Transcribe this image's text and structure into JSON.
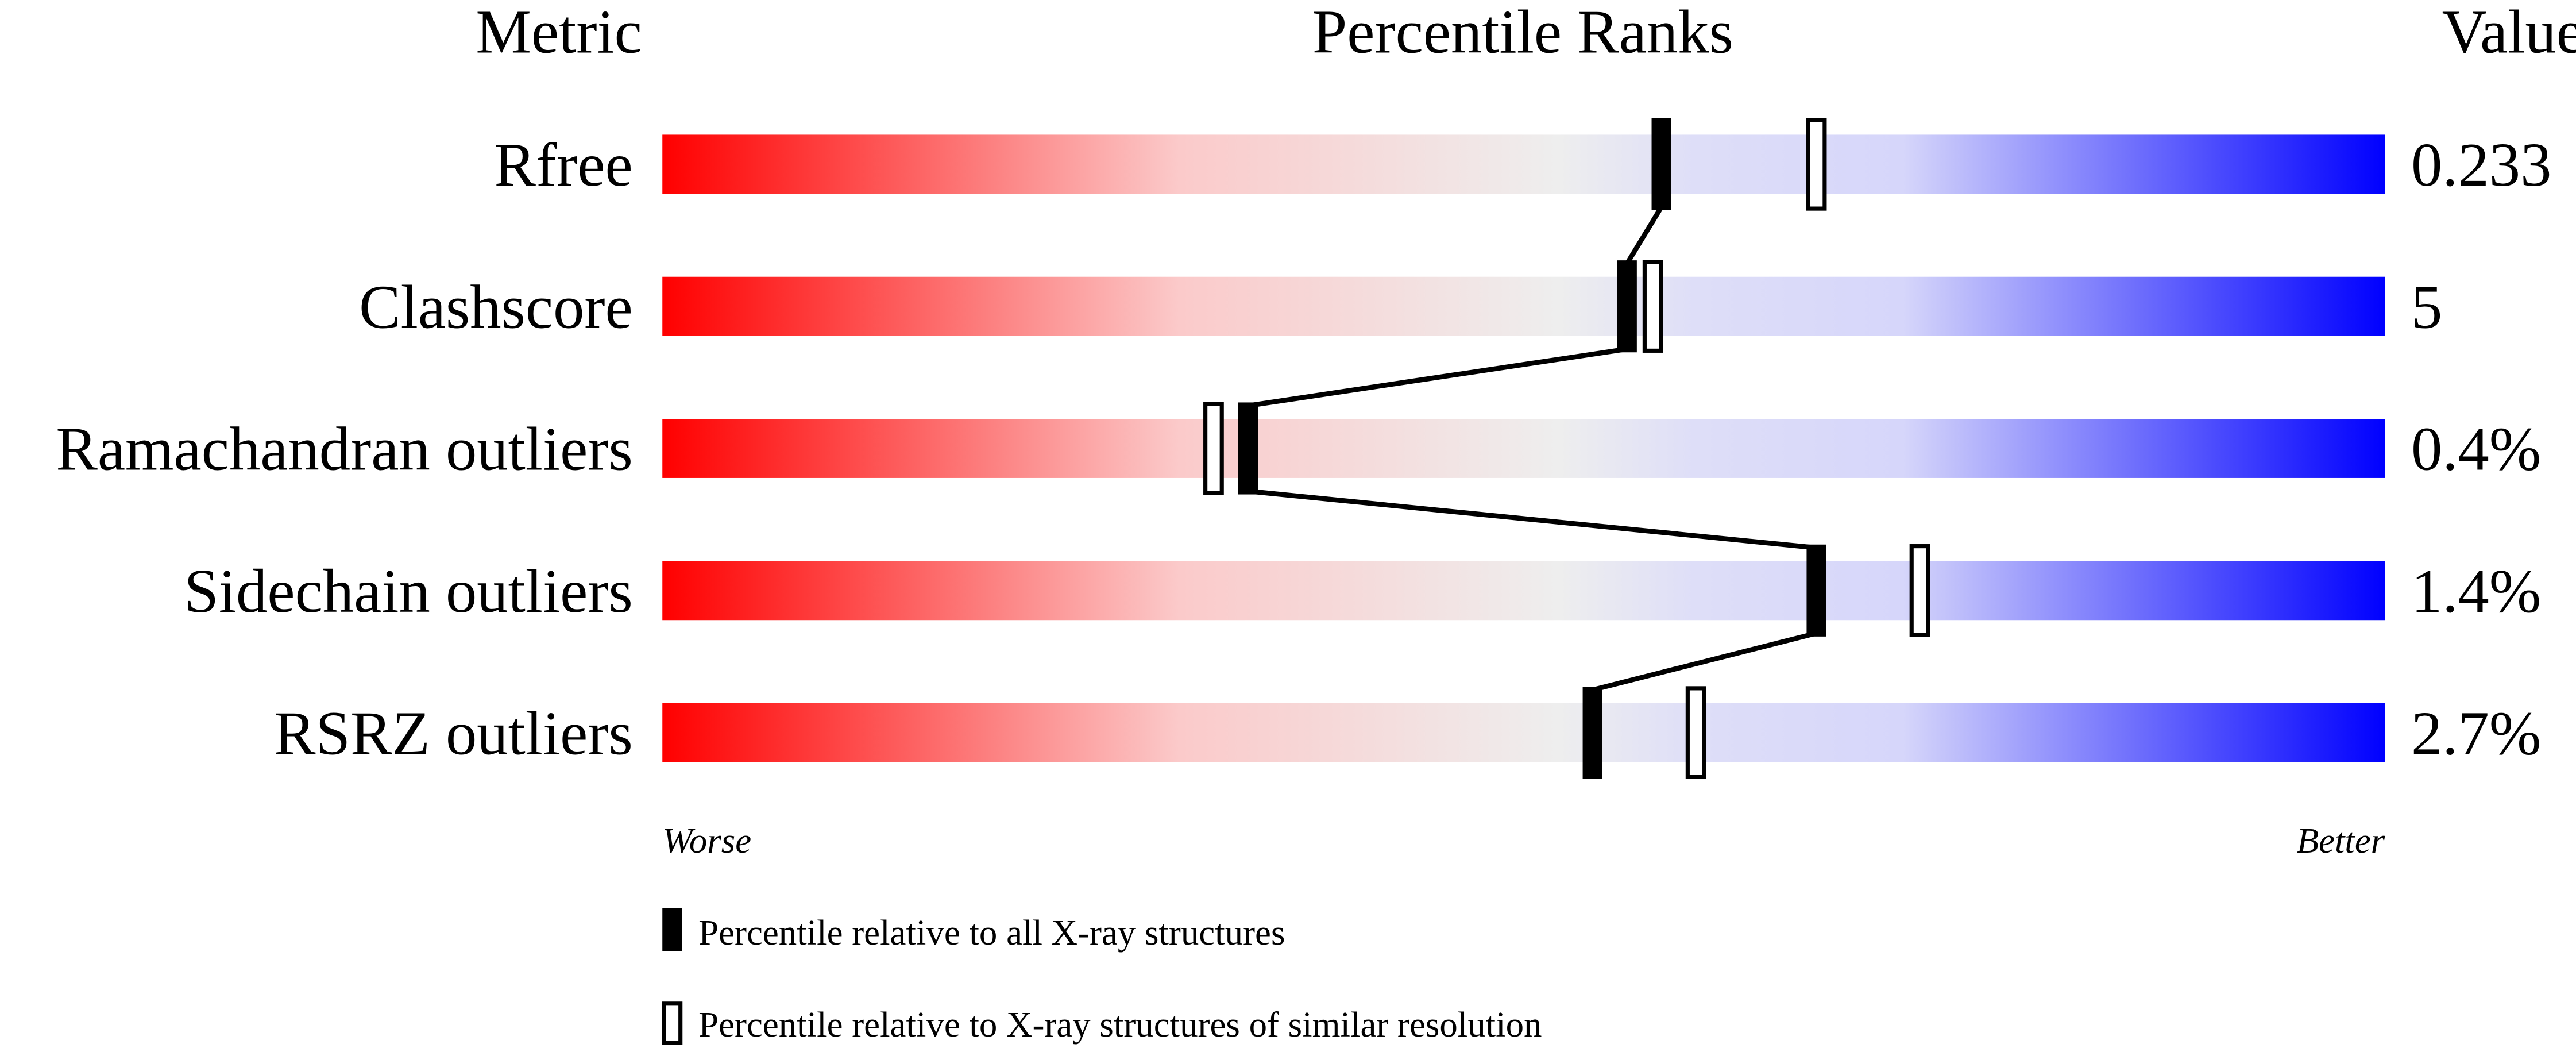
{
  "chart_data": {
    "type": "percentile-slider",
    "headers": {
      "metric": "Metric",
      "ranks": "Percentile Ranks",
      "value": "Value"
    },
    "xlim": [
      0,
      100
    ],
    "axis_labels": {
      "left": "Worse",
      "right": "Better"
    },
    "gradient_colors": {
      "worse": "#ff0000",
      "middle": "#eeeeee",
      "better": "#0000ff"
    },
    "metrics": [
      {
        "name": "Rfree",
        "value": "0.233",
        "percentile_all": 58,
        "percentile_similar": 67
      },
      {
        "name": "Clashscore",
        "value": "5",
        "percentile_all": 56,
        "percentile_similar": 57.5
      },
      {
        "name": "Ramachandran outliers",
        "value": "0.4%",
        "percentile_all": 34,
        "percentile_similar": 32
      },
      {
        "name": "Sidechain outliers",
        "value": "1.4%",
        "percentile_all": 67,
        "percentile_similar": 73
      },
      {
        "name": "RSRZ outliers",
        "value": "2.7%",
        "percentile_all": 54,
        "percentile_similar": 60
      }
    ],
    "legend": [
      {
        "marker": "filled",
        "label": "Percentile relative to all X-ray structures"
      },
      {
        "marker": "open",
        "label": "Percentile relative to X-ray structures of similar resolution"
      }
    ]
  }
}
